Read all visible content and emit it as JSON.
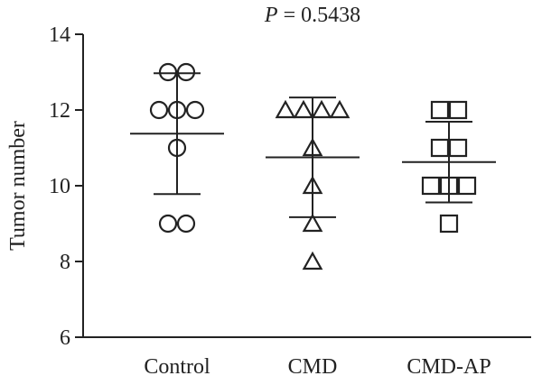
{
  "chart_data": {
    "type": "scatter",
    "title_prefix": "P",
    "title_value": " = 0.5438",
    "xlabel": "",
    "ylabel": "Tumor number",
    "ylim": [
      6,
      14
    ],
    "yticks": [
      6,
      8,
      10,
      12,
      14
    ],
    "grid": false,
    "categories": [
      "Control",
      "CMD",
      "CMD-AP"
    ],
    "series": [
      {
        "category": "Control",
        "marker": "circle",
        "points": [
          13,
          13,
          12,
          12,
          12,
          11,
          9,
          9
        ],
        "mean": 11.375,
        "sd_lower": 9.78,
        "sd_upper": 12.97
      },
      {
        "category": "CMD",
        "marker": "triangle",
        "points": [
          12,
          12,
          12,
          12,
          11,
          10,
          9,
          8
        ],
        "mean": 10.75,
        "sd_lower": 9.17,
        "sd_upper": 12.33
      },
      {
        "category": "CMD-AP",
        "marker": "square",
        "points": [
          12,
          12,
          11,
          11,
          10,
          10,
          10,
          9
        ],
        "mean": 10.625,
        "sd_lower": 9.56,
        "sd_upper": 11.69
      }
    ]
  }
}
